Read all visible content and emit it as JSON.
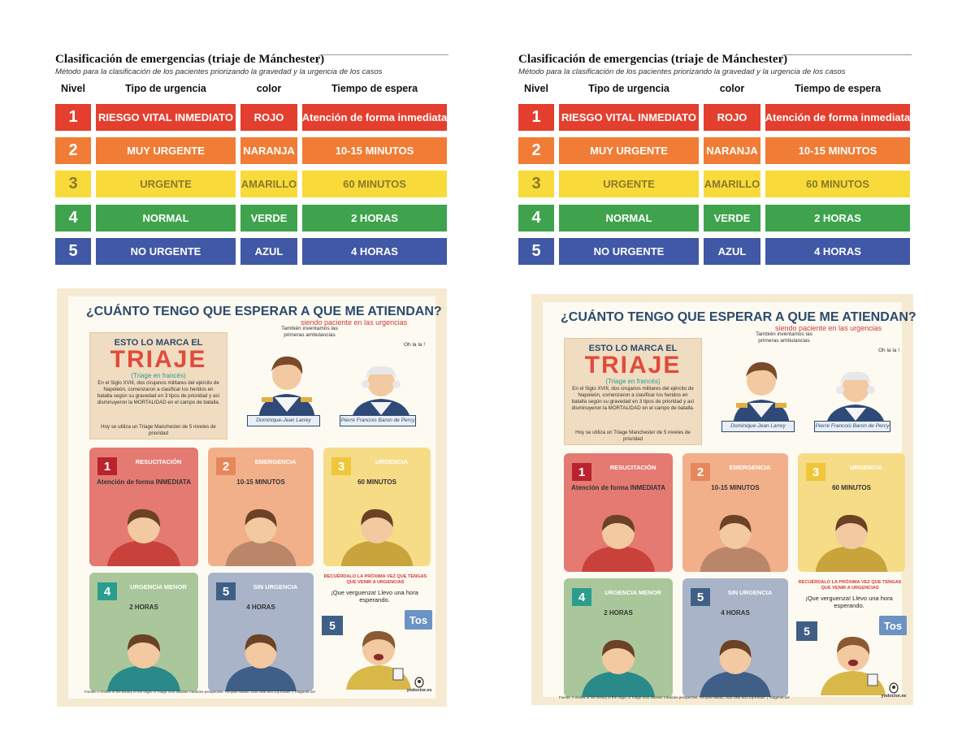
{
  "colors": {
    "red": "#e43f2e",
    "orange": "#f07c35",
    "yellow": "#f8da3a",
    "green": "#3fa34d",
    "blue": "#4058a6",
    "cream": "#f6ead2"
  },
  "table": {
    "title": "Clasificación de emergencias (triaje de Mánchester)",
    "subtitle": "Método para la clasificación de los pacientes priorizando la gravedad y la urgencia de los casos",
    "headers": {
      "nivel": "Nivel",
      "tipo": "Tipo de urgencia",
      "color": "color",
      "tiempo": "Tiempo de espera"
    },
    "rows": [
      {
        "nivel": "1",
        "tipo": "RIESGO VITAL INMEDIATO",
        "color": "ROJO",
        "tiempo": "Atención de forma inmediata",
        "fill": "#e43f2e"
      },
      {
        "nivel": "2",
        "tipo": "MUY URGENTE",
        "color": "NARANJA",
        "tiempo": "10-15 MINUTOS",
        "fill": "#f07c35"
      },
      {
        "nivel": "3",
        "tipo": "URGENTE",
        "color": "AMARILLO",
        "tiempo": "60 MINUTOS",
        "fill": "#f8da3a"
      },
      {
        "nivel": "4",
        "tipo": "NORMAL",
        "color": "VERDE",
        "tiempo": "2 HORAS",
        "fill": "#3fa34d"
      },
      {
        "nivel": "5",
        "tipo": "NO URGENTE",
        "color": "AZUL",
        "tiempo": "4 HORAS",
        "fill": "#4058a6"
      }
    ]
  },
  "infographic": {
    "title": "¿CUÁNTO TENGO QUE ESPERAR A QUE ME ATIENDAN?",
    "subtitle": "siendo paciente en las urgencias",
    "box": {
      "line1": "ESTO LO MARCA EL",
      "word": "TRIAJE",
      "note": "(Triage en francés)",
      "text": "En el Siglo XVIII, dos cirujanos militares del ejército de Napoleón, comenzaron a clasificar los heridos en batalla según su gravedad en 3 tipos de prioridad y así disminuyeron la MORTALIDAD en el campo de batalla.",
      "text2": "Hoy se utiliza un Triage Manchester de 5 niveles de prioridad"
    },
    "bubble1": "También inventamos las primeras ambulancias",
    "bubble2": "Oh la la !",
    "person1": "Dominique-Jean Larrey",
    "person2": "Pierre Francois Baron de Percy",
    "cards": [
      {
        "num": "1",
        "title": "RESUCITACIÓN",
        "text": "Atención de forma INMEDIATA",
        "bg": "#e47a72",
        "badge": "#b8232e"
      },
      {
        "num": "2",
        "title": "EMERGENCIA",
        "text": "10-15 MINUTOS",
        "bg": "#f2b08a",
        "badge": "#e8875a"
      },
      {
        "num": "3",
        "title": "URGENCIA",
        "text": "60 MINUTOS",
        "bg": "#f6dc86",
        "badge": "#f0c63a"
      },
      {
        "num": "4",
        "title": "URGENCIA MENOR",
        "text": "2 HORAS",
        "bg": "#a9c79a",
        "badge": "#2a9d8f"
      },
      {
        "num": "5",
        "title": "SIN URGENCIA",
        "text": "4 HORAS",
        "bg": "#a9b4c8",
        "badge": "#3f5f86"
      }
    ],
    "remember": "RECUÉRDALO LA PRÓXIMA VEZ QUE TENGAS QUE VENIR A URGENCIAS",
    "quote": "¡Que verguenza! Llevo una hora esperando.",
    "num5": "5",
    "tos": "Tos",
    "source": "Fuente: A review of the history of the origin of Triage from disaster medicine perspective. Hiroyuki Nakao, Isao Ukai and Joji Kotani. | Triagenet.net",
    "logo": "yodoctor.es"
  }
}
